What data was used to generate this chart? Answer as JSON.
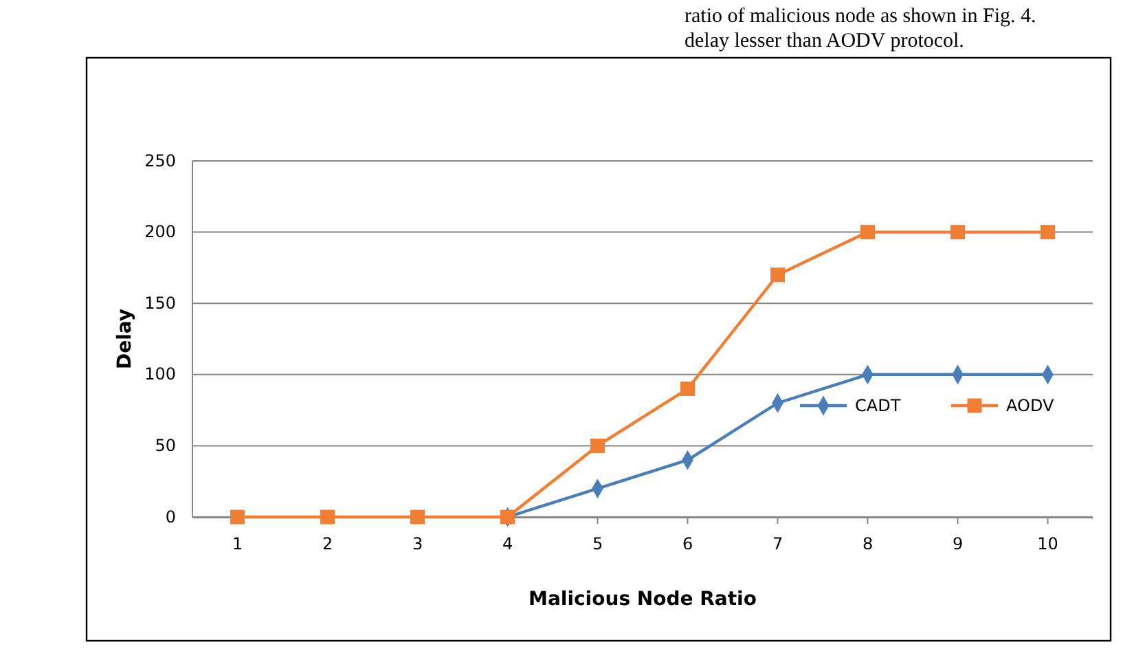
{
  "chart_data": {
    "type": "line",
    "xlabel": "Malicious Node Ratio",
    "ylabel": "Delay",
    "categories": [
      "1",
      "2",
      "3",
      "4",
      "5",
      "6",
      "7",
      "8",
      "9",
      "10"
    ],
    "series": [
      {
        "name": "CADT",
        "color": "#4a7ebb",
        "marker": "diamond",
        "values": [
          null,
          null,
          null,
          0,
          20,
          40,
          80,
          100,
          100,
          100
        ]
      },
      {
        "name": "AODV",
        "color": "#f07f33",
        "marker": "square",
        "values": [
          0,
          0,
          0,
          0,
          50,
          90,
          170,
          200,
          200,
          200
        ]
      }
    ],
    "ylim": [
      0,
      250
    ],
    "yticks": [
      0,
      50,
      100,
      150,
      200,
      250
    ],
    "grid": "y",
    "legend": "right",
    "annotations": [
      "ratio of malicious node as shown in Fig. 4.",
      "delay lesser than AODV protocol."
    ]
  }
}
